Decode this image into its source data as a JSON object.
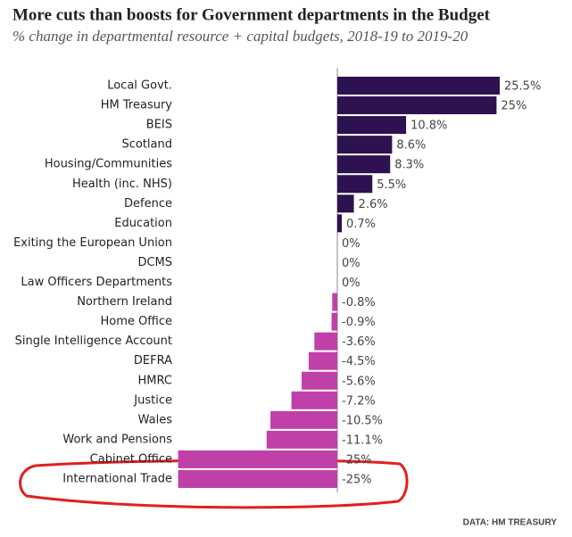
{
  "chart_data": {
    "type": "hbar",
    "title": "More cuts than boosts for Government departments in the Budget",
    "subtitle": "% change in departmental resource + capital budgets, 2018-19 to 2019-20",
    "categories": [
      "Local Govt.",
      "HM Treasury",
      "BEIS",
      "Scotland",
      "Housing/Communities",
      "Health (inc. NHS)",
      "Defence",
      "Education",
      "Exiting the European Union",
      "DCMS",
      "Law Officers Departments",
      "Northern Ireland",
      "Home Office",
      "Single Intelligence Account",
      "DEFRA",
      "HMRC",
      "Justice",
      "Wales",
      "Work and Pensions",
      "Cabinet Office",
      "International Trade"
    ],
    "values": [
      25.5,
      25,
      10.8,
      8.6,
      8.3,
      5.5,
      2.6,
      0.7,
      0,
      0,
      0,
      -0.8,
      -0.9,
      -3.6,
      -4.5,
      -5.6,
      -7.2,
      -10.5,
      -11.1,
      -25,
      -25
    ],
    "value_labels": [
      "25.5%",
      "25%",
      "10.8%",
      "8.6%",
      "8.3%",
      "5.5%",
      "2.6%",
      "0.7%",
      "0%",
      "0%",
      "0%",
      "-0.8%",
      "-0.9%",
      "-3.6%",
      "-4.5%",
      "-5.6%",
      "-7.2%",
      "-10.5%",
      "-11.1%",
      "-25%",
      "-25%"
    ],
    "positive_color": "#2d1150",
    "negative_color": "#c040a8",
    "source": "DATA: HM TREASURY"
  }
}
